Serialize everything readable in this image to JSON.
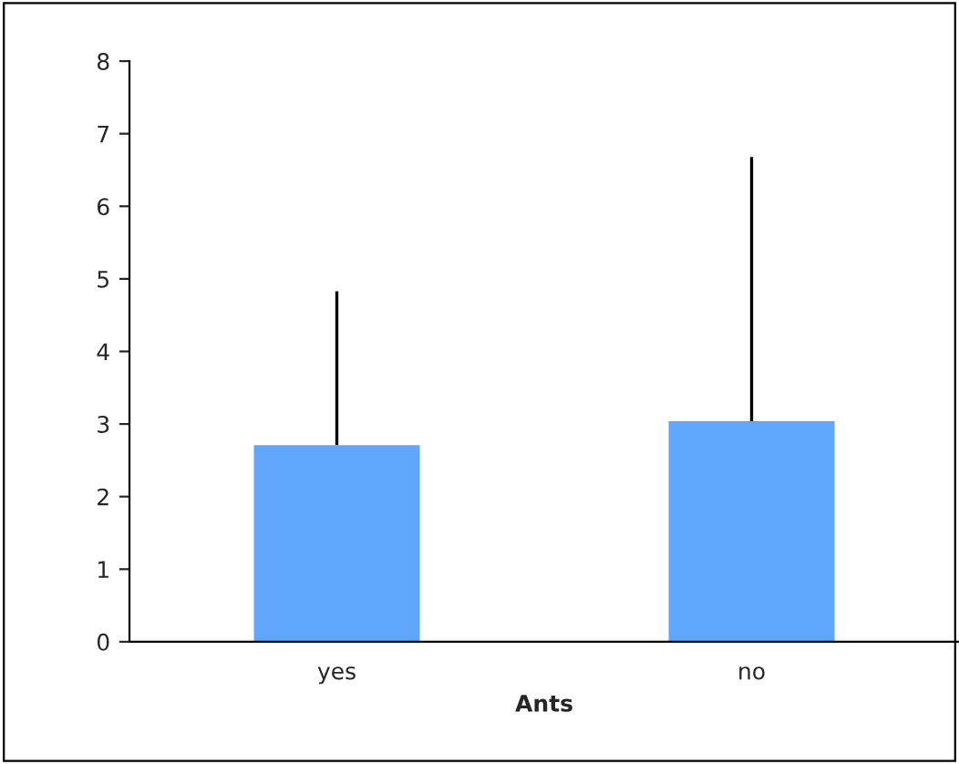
{
  "chart_data": {
    "type": "bar",
    "xlabel": "Ants",
    "categories": [
      "yes",
      "no"
    ],
    "values": [
      2.71,
      3.04
    ],
    "errors": [
      [
        2.71,
        4.83
      ],
      [
        3.04,
        6.68
      ]
    ],
    "color": "#61a6fd",
    "ylim": [
      0,
      8
    ],
    "yticks": [
      0,
      1,
      2,
      3,
      4,
      5,
      6,
      7,
      8
    ],
    "grid": false
  }
}
